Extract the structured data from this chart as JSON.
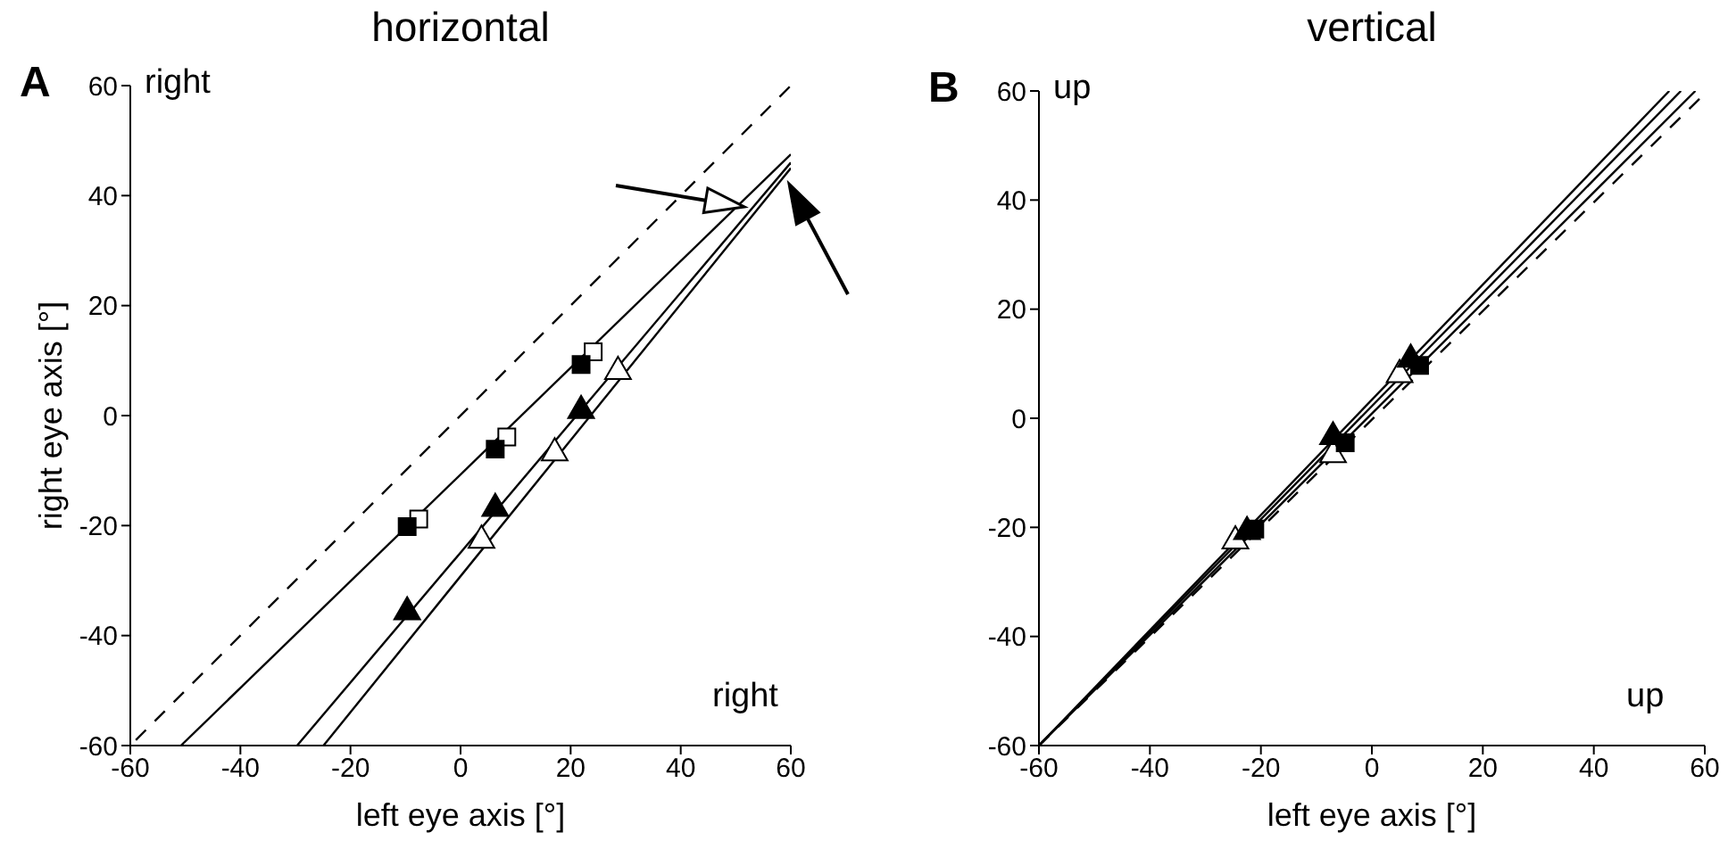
{
  "chart_data": [
    {
      "type": "scatter",
      "title": "horizontal",
      "xlabel": "left eye axis [°]",
      "ylabel": "right eye axis [°]",
      "annotations": [
        "A",
        "right",
        "right"
      ],
      "xlim": [
        -60,
        60
      ],
      "ylim": [
        -60,
        60
      ],
      "xticks": [
        -60,
        -40,
        -20,
        0,
        20,
        40,
        60
      ],
      "yticks": [
        -60,
        -40,
        -20,
        0,
        20,
        40,
        60
      ],
      "series": [
        {
          "type": "line",
          "line_style": "dashed",
          "marker": "none",
          "color": "#000000",
          "x": [
            -59,
            60
          ],
          "values": [
            -59,
            60
          ]
        },
        {
          "type": "line",
          "line_style": "solid",
          "marker": "none",
          "color": "#000000",
          "x": [
            -50.8,
            60
          ],
          "values": [
            -60,
            47.5
          ]
        },
        {
          "type": "line",
          "line_style": "solid",
          "marker": "none",
          "color": "#000000",
          "x": [
            -29.7,
            60
          ],
          "values": [
            -60,
            46
          ]
        },
        {
          "type": "line",
          "line_style": "solid",
          "marker": "none",
          "color": "#000000",
          "x": [
            -24.9,
            60
          ],
          "values": [
            -60,
            45
          ]
        },
        {
          "marker": "square",
          "color": "#ffffff",
          "x": [
            -7.6,
            8.4,
            24.1
          ],
          "values": [
            -18.8,
            -3.9,
            11.6
          ]
        },
        {
          "marker": "square",
          "color": "#000000",
          "x": [
            -9.7,
            6.3,
            21.9
          ],
          "values": [
            -20.2,
            -6.1,
            9.3
          ]
        },
        {
          "marker": "triangle",
          "color": "#ffffff",
          "x": [
            3.8,
            17.1,
            28.6
          ],
          "values": [
            -22.7,
            -6.8,
            8
          ]
        },
        {
          "marker": "triangle",
          "color": "#000000",
          "x": [
            -9.7,
            6.3,
            21.9
          ],
          "values": [
            -35.7,
            -16.9,
            0.9
          ]
        }
      ]
    },
    {
      "type": "scatter",
      "title": "vertical",
      "xlabel": "left eye axis [°]",
      "annotations": [
        "B",
        "up",
        "up"
      ],
      "xlim": [
        -60,
        60
      ],
      "ylim": [
        -60,
        60
      ],
      "xticks": [
        -60,
        -40,
        -20,
        0,
        20,
        40,
        60
      ],
      "yticks": [
        -60,
        -40,
        -20,
        0,
        20,
        40,
        60
      ],
      "series": [
        {
          "type": "line",
          "line_style": "dashed",
          "marker": "none",
          "color": "#000000",
          "x": [
            -60,
            60
          ],
          "values": [
            -60,
            59.5
          ]
        },
        {
          "type": "line",
          "line_style": "solid",
          "marker": "none",
          "color": "#000000",
          "x": [
            -60,
            53.6
          ],
          "values": [
            -60,
            60
          ]
        },
        {
          "type": "line",
          "line_style": "solid",
          "marker": "none",
          "color": "#000000",
          "x": [
            -60,
            55.7
          ],
          "values": [
            -60,
            60
          ]
        },
        {
          "type": "line",
          "line_style": "solid",
          "marker": "none",
          "color": "#000000",
          "x": [
            -60,
            58.3
          ],
          "values": [
            -60,
            60
          ]
        },
        {
          "marker": "triangle",
          "color": "#ffffff",
          "x": [
            -24.6,
            -7,
            5
          ],
          "values": [
            -22.5,
            -6.7,
            8
          ]
        },
        {
          "marker": "triangle",
          "color": "#000000",
          "x": [
            -22.5,
            -7,
            7
          ],
          "values": [
            -20.8,
            -3.4,
            10.8
          ]
        },
        {
          "marker": "square",
          "color": "#000000",
          "x": [
            -21.1,
            -4.8,
            8.6
          ],
          "values": [
            -20.3,
            -4.5,
            9.7
          ]
        }
      ]
    }
  ]
}
